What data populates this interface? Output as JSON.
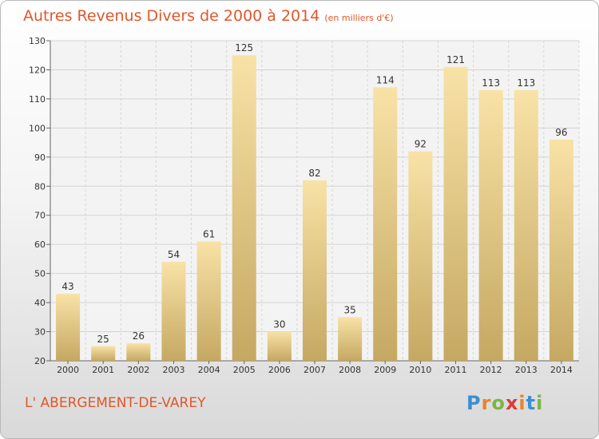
{
  "header": {
    "title": "Autres Revenus Divers de 2000 à 2014",
    "subtitle": "(en milliers d'€)"
  },
  "footer": {
    "commune": "L' ABERGEMENT-DE-VAREY",
    "logo": {
      "letters": [
        "P",
        "r",
        "o",
        "x",
        "i",
        "t",
        "i"
      ],
      "colors": [
        "#3a8fd0",
        "#e8842a",
        "#7ab648",
        "#d93a3a",
        "#e8842a",
        "#3a8fd0",
        "#7ab648"
      ]
    }
  },
  "chart_data": {
    "type": "bar",
    "title": "Autres Revenus Divers de 2000 à 2014",
    "subtitle": "(en milliers d'€)",
    "categories": [
      "2000",
      "2001",
      "2002",
      "2003",
      "2004",
      "2005",
      "2006",
      "2007",
      "2008",
      "2009",
      "2010",
      "2011",
      "2012",
      "2013",
      "2014"
    ],
    "values": [
      43,
      25,
      26,
      54,
      61,
      125,
      30,
      82,
      35,
      114,
      92,
      121,
      113,
      113,
      96
    ],
    "ylim": [
      20,
      130
    ],
    "yticks": [
      20,
      30,
      40,
      50,
      60,
      70,
      80,
      90,
      100,
      110,
      120,
      130
    ],
    "grid": true,
    "colors": {
      "bar_light": "#f7dfa0",
      "bar_dark": "#c7aa66",
      "grid": "#d4d4d4"
    }
  }
}
